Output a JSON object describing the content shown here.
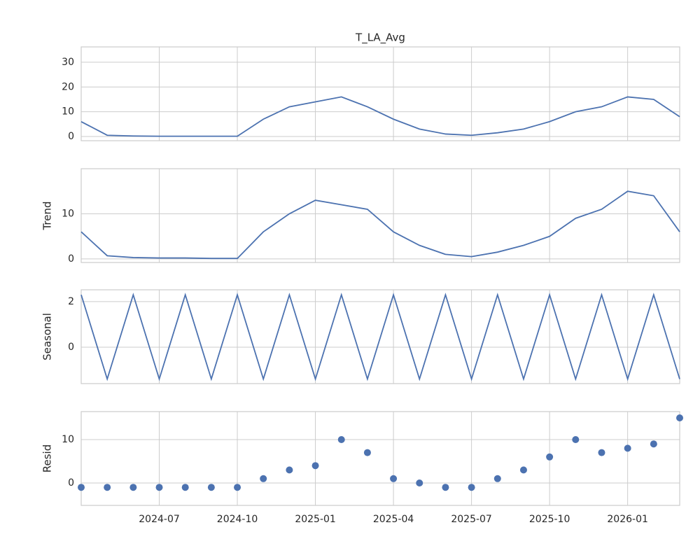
{
  "chart_data": [
    {
      "type": "line",
      "title": "T_LA_Avg",
      "color": "#4c72b0",
      "grid": true,
      "x": [
        "2024-04",
        "2024-05",
        "2024-06",
        "2024-07",
        "2024-08",
        "2024-09",
        "2024-10",
        "2024-11",
        "2024-12",
        "2025-01",
        "2025-02",
        "2025-03",
        "2025-04",
        "2025-05",
        "2025-06",
        "2025-07",
        "2025-08",
        "2025-09",
        "2025-10",
        "2025-11",
        "2025-12",
        "2026-01",
        "2026-02",
        "2026-03"
      ],
      "values": [
        6,
        0.5,
        0.2,
        0.1,
        0.1,
        0.1,
        0.1,
        7,
        12,
        14,
        16,
        12,
        7,
        3,
        1,
        0.5,
        1.5,
        3,
        6,
        10,
        12,
        16,
        15,
        8
      ],
      "xlim": [
        "2024-04",
        "2026-03"
      ],
      "ylim": [
        -1.7,
        36.2
      ],
      "yticks": [
        0,
        10,
        20,
        30
      ]
    },
    {
      "type": "line",
      "ylabel": "Trend",
      "color": "#4c72b0",
      "grid": true,
      "x": [
        "2024-04",
        "2024-05",
        "2024-06",
        "2024-07",
        "2024-08",
        "2024-09",
        "2024-10",
        "2024-11",
        "2024-12",
        "2025-01",
        "2025-02",
        "2025-03",
        "2025-04",
        "2025-05",
        "2025-06",
        "2025-07",
        "2025-08",
        "2025-09",
        "2025-10",
        "2025-11",
        "2025-12",
        "2026-01",
        "2026-02",
        "2026-03"
      ],
      "values": [
        6,
        0.7,
        0.3,
        0.2,
        0.2,
        0.1,
        0.1,
        6,
        10,
        13,
        12,
        11,
        6,
        3,
        1,
        0.5,
        1.5,
        3,
        5,
        9,
        11,
        15,
        14,
        6
      ],
      "xlim": [
        "2024-04",
        "2026-03"
      ],
      "ylim": [
        -0.8,
        20
      ],
      "yticks": [
        0,
        10
      ]
    },
    {
      "type": "line",
      "ylabel": "Seasonal",
      "color": "#4c72b0",
      "grid": true,
      "x": [
        "2024-04",
        "2024-05",
        "2024-06",
        "2024-07",
        "2024-08",
        "2024-09",
        "2024-10",
        "2024-11",
        "2024-12",
        "2025-01",
        "2025-02",
        "2025-03",
        "2025-04",
        "2025-05",
        "2025-06",
        "2025-07",
        "2025-08",
        "2025-09",
        "2025-10",
        "2025-11",
        "2025-12",
        "2026-01",
        "2026-02",
        "2026-03"
      ],
      "values": [
        2.3,
        -1.4,
        2.3,
        -1.4,
        2.3,
        -1.4,
        2.3,
        -1.4,
        2.3,
        -1.4,
        2.3,
        -1.4,
        2.3,
        -1.4,
        2.3,
        -1.4,
        2.3,
        -1.4,
        2.3,
        -1.4,
        2.3,
        -1.4,
        2.3,
        -1.4
      ],
      "xlim": [
        "2024-04",
        "2026-03"
      ],
      "ylim": [
        -1.6,
        2.52
      ],
      "yticks": [
        0,
        2
      ]
    },
    {
      "type": "scatter",
      "ylabel": "Resid",
      "color": "#4c72b0",
      "grid": true,
      "x": [
        "2024-04",
        "2024-05",
        "2024-06",
        "2024-07",
        "2024-08",
        "2024-09",
        "2024-10",
        "2024-11",
        "2024-12",
        "2025-01",
        "2025-02",
        "2025-03",
        "2025-04",
        "2025-05",
        "2025-06",
        "2025-07",
        "2025-08",
        "2025-09",
        "2025-10",
        "2025-11",
        "2025-12",
        "2026-01",
        "2026-02",
        "2026-03"
      ],
      "values": [
        -1,
        -1,
        -1,
        -1,
        -1,
        -1,
        -1,
        1,
        3,
        4,
        10,
        7,
        1,
        0,
        -1,
        -1,
        1,
        3,
        6,
        10,
        7,
        8,
        9,
        15
      ],
      "xlim": [
        "2024-04",
        "2026-03"
      ],
      "ylim": [
        -5.16,
        16.45
      ],
      "yticks": [
        0,
        10
      ],
      "xticks": [
        "2024-07",
        "2024-10",
        "2025-01",
        "2025-04",
        "2025-07",
        "2025-10",
        "2026-01"
      ]
    }
  ]
}
